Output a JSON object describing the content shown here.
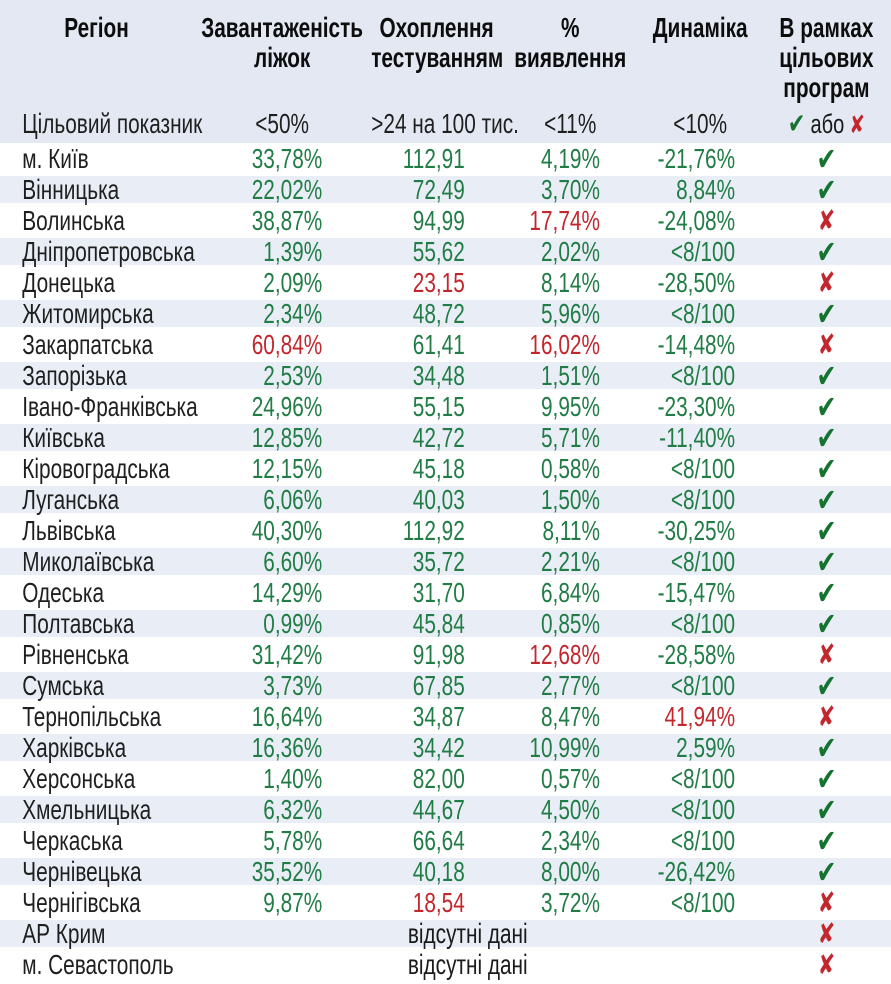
{
  "chart_data": {
    "type": "table",
    "columns": [
      {
        "id": "region",
        "lines": [
          "Регіон"
        ]
      },
      {
        "id": "bed_occupancy",
        "lines": [
          "Завантаженість",
          "ліжок"
        ]
      },
      {
        "id": "testing_coverage",
        "lines": [
          "Охоплення",
          "тестуванням"
        ]
      },
      {
        "id": "detection_rate",
        "lines": [
          "%",
          "виявлення"
        ]
      },
      {
        "id": "dynamics",
        "lines": [
          "Динаміка"
        ]
      },
      {
        "id": "target_programs",
        "lines": [
          "В рамках",
          "цільових",
          "програм"
        ]
      }
    ],
    "target_row": {
      "label": "Цільовий показник",
      "bed": "<50%",
      "test": ">24 на 100 тис.",
      "detect": "<11%",
      "dynamics": "<10%",
      "or_text": "або"
    },
    "rows": [
      {
        "region": "м. Київ",
        "bed": [
          "33,78%",
          "ok"
        ],
        "test": [
          "112,91",
          "ok"
        ],
        "detect": [
          "4,19%",
          "ok"
        ],
        "dyn": [
          "-21,76%",
          "ok"
        ],
        "status": "pass"
      },
      {
        "region": "Вінницька",
        "bed": [
          "22,02%",
          "ok"
        ],
        "test": [
          "72,49",
          "ok"
        ],
        "detect": [
          "3,70%",
          "ok"
        ],
        "dyn": [
          "8,84%",
          "ok"
        ],
        "status": "pass"
      },
      {
        "region": "Волинська",
        "bed": [
          "38,87%",
          "ok"
        ],
        "test": [
          "94,99",
          "ok"
        ],
        "detect": [
          "17,74%",
          "bad"
        ],
        "dyn": [
          "-24,08%",
          "ok"
        ],
        "status": "fail"
      },
      {
        "region": "Дніпропетровська",
        "bed": [
          "1,39%",
          "ok"
        ],
        "test": [
          "55,62",
          "ok"
        ],
        "detect": [
          "2,02%",
          "ok"
        ],
        "dyn": [
          "<8/100",
          "ok"
        ],
        "status": "pass"
      },
      {
        "region": "Донецька",
        "bed": [
          "2,09%",
          "ok"
        ],
        "test": [
          "23,15",
          "bad"
        ],
        "detect": [
          "8,14%",
          "ok"
        ],
        "dyn": [
          "-28,50%",
          "ok"
        ],
        "status": "fail"
      },
      {
        "region": "Житомирська",
        "bed": [
          "2,34%",
          "ok"
        ],
        "test": [
          "48,72",
          "ok"
        ],
        "detect": [
          "5,96%",
          "ok"
        ],
        "dyn": [
          "<8/100",
          "ok"
        ],
        "status": "pass"
      },
      {
        "region": "Закарпатська",
        "bed": [
          "60,84%",
          "bad"
        ],
        "test": [
          "61,41",
          "ok"
        ],
        "detect": [
          "16,02%",
          "bad"
        ],
        "dyn": [
          "-14,48%",
          "ok"
        ],
        "status": "fail"
      },
      {
        "region": "Запорізька",
        "bed": [
          "2,53%",
          "ok"
        ],
        "test": [
          "34,48",
          "ok"
        ],
        "detect": [
          "1,51%",
          "ok"
        ],
        "dyn": [
          "<8/100",
          "ok"
        ],
        "status": "pass"
      },
      {
        "region": "Івано-Франківська",
        "bed": [
          "24,96%",
          "ok"
        ],
        "test": [
          "55,15",
          "ok"
        ],
        "detect": [
          "9,95%",
          "ok"
        ],
        "dyn": [
          "-23,30%",
          "ok"
        ],
        "status": "pass"
      },
      {
        "region": "Київська",
        "bed": [
          "12,85%",
          "ok"
        ],
        "test": [
          "42,72",
          "ok"
        ],
        "detect": [
          "5,71%",
          "ok"
        ],
        "dyn": [
          "-11,40%",
          "ok"
        ],
        "status": "pass"
      },
      {
        "region": "Кіровоградська",
        "bed": [
          "12,15%",
          "ok"
        ],
        "test": [
          "45,18",
          "ok"
        ],
        "detect": [
          "0,58%",
          "ok"
        ],
        "dyn": [
          "<8/100",
          "ok"
        ],
        "status": "pass"
      },
      {
        "region": "Луганська",
        "bed": [
          "6,06%",
          "ok"
        ],
        "test": [
          "40,03",
          "ok"
        ],
        "detect": [
          "1,50%",
          "ok"
        ],
        "dyn": [
          "<8/100",
          "ok"
        ],
        "status": "pass"
      },
      {
        "region": "Львівська",
        "bed": [
          "40,30%",
          "ok"
        ],
        "test": [
          "112,92",
          "ok"
        ],
        "detect": [
          "8,11%",
          "ok"
        ],
        "dyn": [
          "-30,25%",
          "ok"
        ],
        "status": "pass"
      },
      {
        "region": "Миколаївська",
        "bed": [
          "6,60%",
          "ok"
        ],
        "test": [
          "35,72",
          "ok"
        ],
        "detect": [
          "2,21%",
          "ok"
        ],
        "dyn": [
          "<8/100",
          "ok"
        ],
        "status": "pass"
      },
      {
        "region": "Одеська",
        "bed": [
          "14,29%",
          "ok"
        ],
        "test": [
          "31,70",
          "ok"
        ],
        "detect": [
          "6,84%",
          "ok"
        ],
        "dyn": [
          "-15,47%",
          "ok"
        ],
        "status": "pass"
      },
      {
        "region": "Полтавська",
        "bed": [
          "0,99%",
          "ok"
        ],
        "test": [
          "45,84",
          "ok"
        ],
        "detect": [
          "0,85%",
          "ok"
        ],
        "dyn": [
          "<8/100",
          "ok"
        ],
        "status": "pass"
      },
      {
        "region": "Рівненська",
        "bed": [
          "31,42%",
          "ok"
        ],
        "test": [
          "91,98",
          "ok"
        ],
        "detect": [
          "12,68%",
          "bad"
        ],
        "dyn": [
          "-28,58%",
          "ok"
        ],
        "status": "fail"
      },
      {
        "region": "Сумська",
        "bed": [
          "3,73%",
          "ok"
        ],
        "test": [
          "67,85",
          "ok"
        ],
        "detect": [
          "2,77%",
          "ok"
        ],
        "dyn": [
          "<8/100",
          "ok"
        ],
        "status": "pass"
      },
      {
        "region": "Тернопільська",
        "bed": [
          "16,64%",
          "ok"
        ],
        "test": [
          "34,87",
          "ok"
        ],
        "detect": [
          "8,47%",
          "ok"
        ],
        "dyn": [
          "41,94%",
          "bad"
        ],
        "status": "fail"
      },
      {
        "region": "Харківська",
        "bed": [
          "16,36%",
          "ok"
        ],
        "test": [
          "34,42",
          "ok"
        ],
        "detect": [
          "10,99%",
          "ok"
        ],
        "dyn": [
          "2,59%",
          "ok"
        ],
        "status": "pass"
      },
      {
        "region": "Херсонська",
        "bed": [
          "1,40%",
          "ok"
        ],
        "test": [
          "82,00",
          "ok"
        ],
        "detect": [
          "0,57%",
          "ok"
        ],
        "dyn": [
          "<8/100",
          "ok"
        ],
        "status": "pass"
      },
      {
        "region": "Хмельницька",
        "bed": [
          "6,32%",
          "ok"
        ],
        "test": [
          "44,67",
          "ok"
        ],
        "detect": [
          "4,50%",
          "ok"
        ],
        "dyn": [
          "<8/100",
          "ok"
        ],
        "status": "pass"
      },
      {
        "region": "Черкаська",
        "bed": [
          "5,78%",
          "ok"
        ],
        "test": [
          "66,64",
          "ok"
        ],
        "detect": [
          "2,34%",
          "ok"
        ],
        "dyn": [
          "<8/100",
          "ok"
        ],
        "status": "pass"
      },
      {
        "region": "Чернівецька",
        "bed": [
          "35,52%",
          "ok"
        ],
        "test": [
          "40,18",
          "ok"
        ],
        "detect": [
          "8,00%",
          "ok"
        ],
        "dyn": [
          "-26,42%",
          "ok"
        ],
        "status": "pass"
      },
      {
        "region": "Чернігівська",
        "bed": [
          "9,87%",
          "ok"
        ],
        "test": [
          "18,54",
          "bad"
        ],
        "detect": [
          "3,72%",
          "ok"
        ],
        "dyn": [
          "<8/100",
          "ok"
        ],
        "status": "fail"
      },
      {
        "region": "АР Крим",
        "note": "відсутні дані",
        "status": "fail"
      },
      {
        "region": "м. Севастополь",
        "note": "відсутні дані",
        "status": "fail"
      }
    ]
  },
  "icons": {
    "check": "✔",
    "cross": "✘"
  },
  "colors": {
    "value_green": "#217c46",
    "value_red": "#c2272d",
    "check_green": "#15722f",
    "cross_red": "#c2272d",
    "header_bg": "#e3e8f2",
    "alt_row_bg": "#e9eef6"
  }
}
